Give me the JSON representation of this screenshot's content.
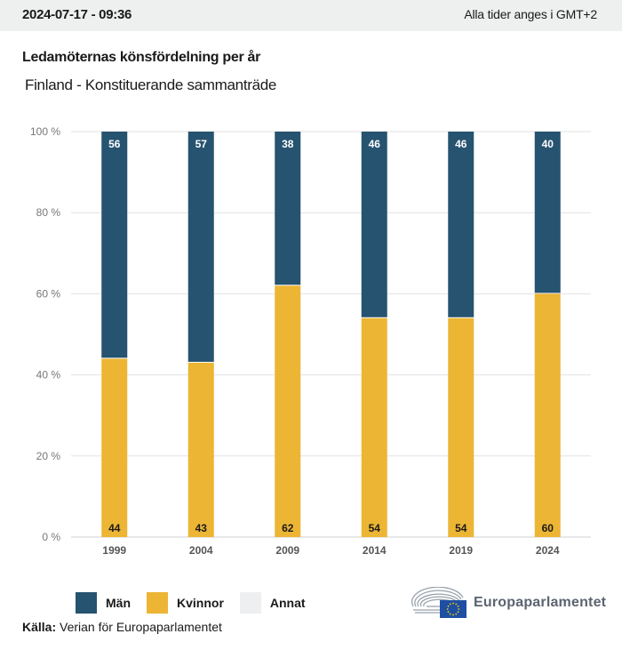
{
  "header": {
    "timestamp": "2024-07-17 - 09:36",
    "timezone_note": "Alla tider anges i GMT+2"
  },
  "colors": {
    "men": "#26536f",
    "women": "#ecb534",
    "other": "#eeeff1",
    "grid": "#e2e2e2",
    "topbar": "#eeefef"
  },
  "chart_data": {
    "type": "bar",
    "stacked": true,
    "title": "Ledamöternas könsfördelning per år",
    "subtitle": "Finland - Konstituerande sammanträde",
    "xlabel": "",
    "ylabel": "",
    "ylim": [
      0,
      100
    ],
    "y_ticks": [
      0,
      20,
      40,
      60,
      80,
      100
    ],
    "y_tick_labels": [
      "0 %",
      "20 %",
      "40 %",
      "60 %",
      "80 %",
      "100 %"
    ],
    "grid": true,
    "categories": [
      "1999",
      "2004",
      "2009",
      "2014",
      "2019",
      "2024"
    ],
    "series": [
      {
        "name": "Kvinnor",
        "values": [
          44,
          43,
          62,
          54,
          54,
          60
        ]
      },
      {
        "name": "Män",
        "values": [
          56,
          57,
          38,
          46,
          46,
          40
        ]
      },
      {
        "name": "Annat",
        "values": [
          0,
          0,
          0,
          0,
          0,
          0
        ]
      }
    ],
    "legend": {
      "placement": "bottom-left",
      "entries": [
        "Män",
        "Kvinnor",
        "Annat"
      ]
    }
  },
  "footer": {
    "source_label": "Källa:",
    "source_text": "Verian för Europaparlamentet",
    "logo_text": "Europaparlamentet"
  }
}
